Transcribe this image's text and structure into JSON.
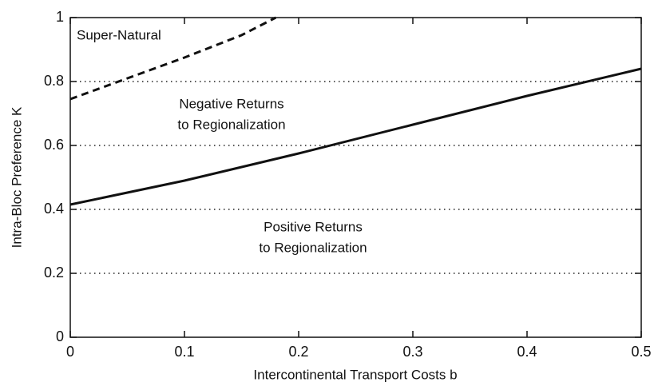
{
  "chart_data": {
    "type": "line",
    "xlabel": "Intercontinental Transport Costs b",
    "ylabel": "Intra-Bloc Preference K",
    "xlim": [
      0,
      0.5
    ],
    "xticks": [
      0,
      0.1,
      0.2,
      0.3,
      0.4,
      0.5
    ],
    "ylim": [
      0,
      1
    ],
    "yticks": [
      0,
      0.2,
      0.4,
      0.6,
      0.8,
      1
    ],
    "grid": true,
    "series": [
      {
        "color": "#111111",
        "style": "solid",
        "x": [
          0,
          0.1,
          0.2,
          0.3,
          0.4,
          0.5
        ],
        "values": [
          0.415,
          0.49,
          0.575,
          0.665,
          0.755,
          0.84
        ]
      },
      {
        "color": "#111111",
        "style": "dashed",
        "x": [
          0,
          0.05,
          0.1,
          0.15,
          0.18
        ],
        "values": [
          0.745,
          0.81,
          0.875,
          0.945,
          1.0
        ]
      }
    ],
    "annotations": [
      [
        "Super-Natural"
      ],
      [
        "Negative Returns",
        "to Regionalization"
      ],
      [
        "Positive Returns",
        "to Regionalization"
      ]
    ]
  }
}
